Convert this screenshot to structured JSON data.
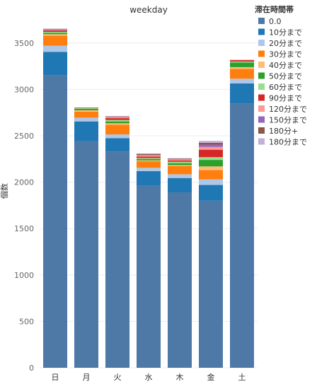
{
  "chart_data": {
    "type": "bar",
    "stacked": true,
    "title": "weekday",
    "ylabel": "個数",
    "xlabel": "",
    "categories": [
      "日",
      "月",
      "火",
      "水",
      "木",
      "金",
      "土"
    ],
    "yticks": [
      0,
      500,
      1000,
      1500,
      2000,
      2500,
      3000,
      3500
    ],
    "ylim": [
      0,
      3750
    ],
    "grid": true,
    "legend_title": "滞在時間帯",
    "legend_position": "top-right",
    "series": [
      {
        "name": "0.0",
        "color": "#4e79a7",
        "values": [
          3150,
          2440,
          2330,
          1960,
          1890,
          1800,
          2850
        ]
      },
      {
        "name": "10分まで",
        "color": "#1f77b4",
        "values": [
          255,
          215,
          145,
          160,
          155,
          170,
          215
        ]
      },
      {
        "name": "20分まで",
        "color": "#aec7e8",
        "values": [
          65,
          40,
          40,
          35,
          40,
          60,
          50
        ]
      },
      {
        "name": "30分まで",
        "color": "#ff7f0e",
        "values": [
          110,
          65,
          105,
          70,
          90,
          100,
          105
        ]
      },
      {
        "name": "40分まで",
        "color": "#ffbb78",
        "values": [
          15,
          15,
          15,
          10,
          10,
          40,
          20
        ]
      },
      {
        "name": "50分まで",
        "color": "#2ca02c",
        "values": [
          15,
          15,
          20,
          15,
          20,
          70,
          50
        ]
      },
      {
        "name": "60分まで",
        "color": "#98df8a",
        "values": [
          10,
          10,
          15,
          10,
          15,
          30,
          10
        ]
      },
      {
        "name": "90分まで",
        "color": "#d62728",
        "values": [
          15,
          5,
          20,
          15,
          15,
          80,
          15
        ]
      },
      {
        "name": "120分まで",
        "color": "#ff9896",
        "values": [
          5,
          0,
          10,
          15,
          10,
          30,
          5
        ]
      },
      {
        "name": "150分まで",
        "color": "#9467bd",
        "values": [
          5,
          0,
          5,
          5,
          5,
          25,
          0
        ]
      },
      {
        "name": "180分+",
        "color": "#8c564b",
        "values": [
          5,
          0,
          5,
          10,
          5,
          20,
          0
        ]
      },
      {
        "name": "180分まで",
        "color": "#c5b0d5",
        "values": [
          5,
          0,
          0,
          5,
          5,
          20,
          0
        ]
      }
    ]
  }
}
